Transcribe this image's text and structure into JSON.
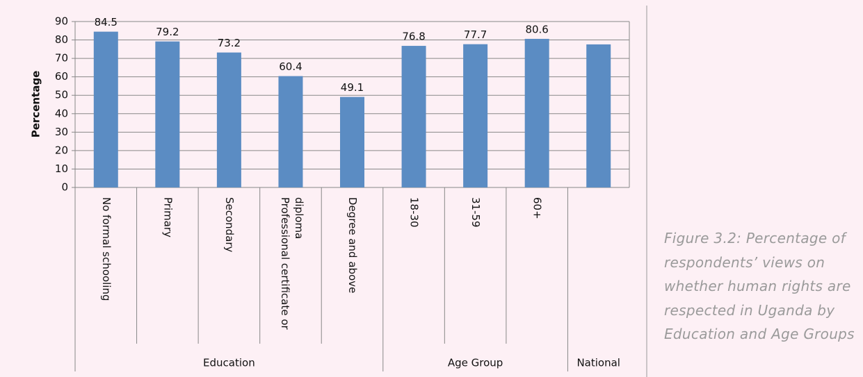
{
  "chart_data": {
    "type": "bar",
    "caption": "Figure 3.2: Percentage of respondents’ views on whether human rights are respected in Uganda by Education and Age Groups",
    "ylabel": "Percentage",
    "categories": [
      "No formal schooling",
      "Primary",
      "Secondary",
      "Professional certificate or diploma",
      "Degree and above",
      "18-30",
      "31-59",
      "60+",
      null
    ],
    "values": [
      84.5,
      79.2,
      73.2,
      60.4,
      49.1,
      76.8,
      77.7,
      80.6,
      77.6
    ],
    "value_labels": [
      "84.5",
      "79.2",
      "73.2",
      "60.4",
      "49.1",
      "76.8",
      "77.7",
      "80.6",
      null
    ],
    "groups": [
      {
        "label": "Education",
        "categories": [
          "No formal schooling",
          "Primary",
          "Secondary",
          "Professional certificate or diploma",
          "Degree and above"
        ]
      },
      {
        "label": "Age Group",
        "categories": [
          "18-30",
          "31-59",
          "60+"
        ]
      },
      {
        "label": "National",
        "categories": [
          null
        ]
      }
    ],
    "color": "#5b8cc3",
    "ylim": [
      0,
      90
    ],
    "yticks": [
      0,
      10,
      20,
      30,
      40,
      50,
      60,
      70,
      80,
      90
    ],
    "grid": true
  }
}
